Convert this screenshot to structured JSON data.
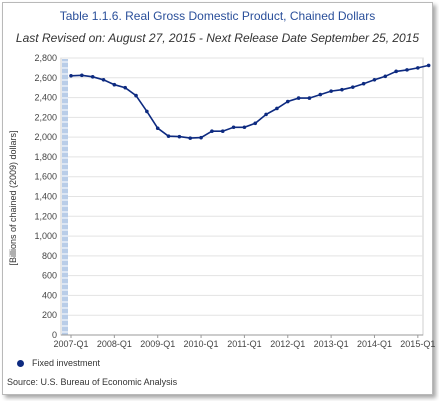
{
  "page": {
    "title": "Table 1.1.6. Real Gross Domestic Product, Chained Dollars",
    "subtitle": "Last Revised on: August 27, 2015 - Next Release Date September 25, 2015",
    "source": "Source: U.S. Bureau of Economic  Analysis"
  },
  "chart_data": {
    "type": "line",
    "ylabel": "[Billions of chained (2009) dollars]",
    "ylim": [
      0,
      2800
    ],
    "yticks": [
      0,
      200,
      400,
      600,
      800,
      1000,
      1200,
      1400,
      1600,
      1800,
      2000,
      2200,
      2400,
      2600,
      2800
    ],
    "ytick_labels": [
      "0",
      "200",
      "400",
      "600",
      "800",
      "1,000",
      "1,200",
      "1,400",
      "1,600",
      "1,800",
      "2,000",
      "2,200",
      "2,400",
      "2,600",
      "2,800"
    ],
    "x": [
      "2007-Q1",
      "2007-Q2",
      "2007-Q3",
      "2007-Q4",
      "2008-Q1",
      "2008-Q2",
      "2008-Q3",
      "2008-Q4",
      "2009-Q1",
      "2009-Q2",
      "2009-Q3",
      "2009-Q4",
      "2010-Q1",
      "2010-Q2",
      "2010-Q3",
      "2010-Q4",
      "2011-Q1",
      "2011-Q2",
      "2011-Q3",
      "2011-Q4",
      "2012-Q1",
      "2012-Q2",
      "2012-Q3",
      "2012-Q4",
      "2013-Q1",
      "2013-Q2",
      "2013-Q3",
      "2013-Q4",
      "2014-Q1",
      "2014-Q2",
      "2014-Q3",
      "2014-Q4",
      "2015-Q1",
      "2015-Q2"
    ],
    "xtick_labels": [
      "2007-Q1",
      "2008-Q1",
      "2009-Q1",
      "2010-Q1",
      "2011-Q1",
      "2012-Q1",
      "2013-Q1",
      "2014-Q1",
      "2015-Q1"
    ],
    "series": [
      {
        "name": "Fixed investment",
        "color": "#0d2a80",
        "values": [
          2620,
          2625,
          2610,
          2580,
          2530,
          2500,
          2420,
          2260,
          2090,
          2010,
          2005,
          1990,
          1995,
          2060,
          2060,
          2100,
          2100,
          2140,
          2230,
          2290,
          2360,
          2395,
          2395,
          2430,
          2465,
          2480,
          2505,
          2540,
          2580,
          2615,
          2665,
          2680,
          2700,
          2725
        ]
      }
    ],
    "legend": "bottom-left",
    "grid": true
  }
}
